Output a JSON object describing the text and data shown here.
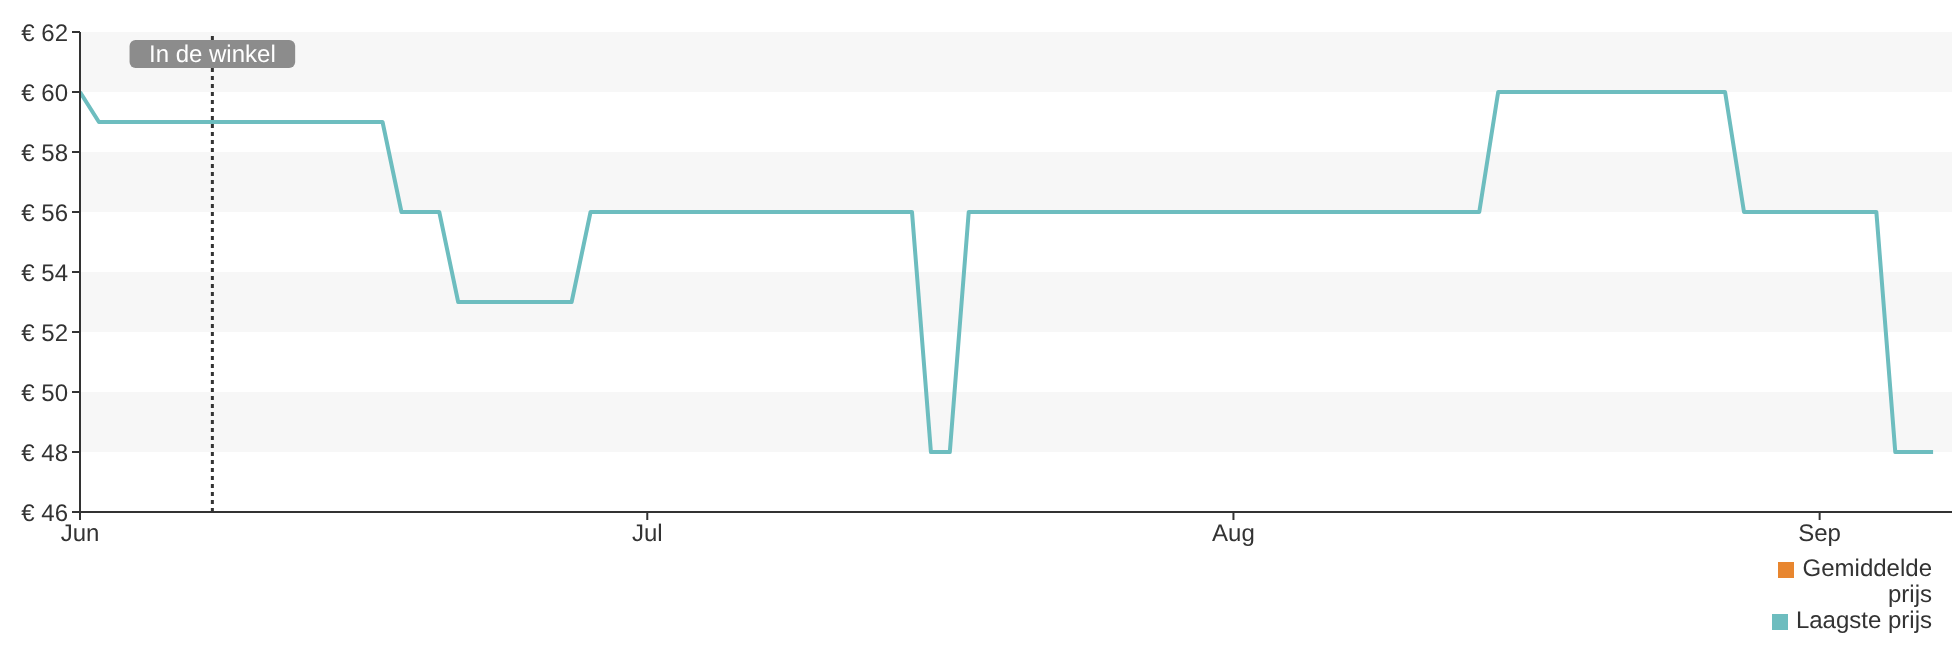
{
  "chart_data": {
    "type": "line",
    "x": [
      "--06-01",
      "--06-02",
      "--06-17",
      "--06-18",
      "--06-20",
      "--06-21",
      "--06-27",
      "--06-28",
      "--07-15",
      "--07-16",
      "--07-17",
      "--07-18",
      "--08-14",
      "--08-15",
      "--08-27",
      "--08-28",
      "--09-04",
      "--09-05",
      "--09-07"
    ],
    "series": [
      {
        "name": "Gemiddelde prijs",
        "color": "#e8862f",
        "values": [
          null,
          null,
          null,
          null,
          null,
          null,
          null,
          null,
          null,
          null,
          null,
          null,
          null,
          null,
          null,
          null,
          null,
          null,
          null
        ]
      },
      {
        "name": "Laagste prijs",
        "color": "#6dbdbf",
        "values": [
          60,
          59,
          59,
          56,
          56,
          53,
          53,
          56,
          56,
          48,
          48,
          56,
          56,
          60,
          60,
          56,
          56,
          48,
          48
        ]
      }
    ],
    "xlim": [
      "--06-01",
      "--09-08"
    ],
    "xticks": [
      {
        "value": "--06-01",
        "label": "Jun"
      },
      {
        "value": "--07-01",
        "label": "Jul"
      },
      {
        "value": "--08-01",
        "label": "Aug"
      },
      {
        "value": "--09-01",
        "label": "Sep"
      }
    ],
    "ylim": [
      46,
      62
    ],
    "yticks": [
      {
        "value": 46,
        "label": "€ 46"
      },
      {
        "value": 48,
        "label": "€ 48"
      },
      {
        "value": 50,
        "label": "€ 50"
      },
      {
        "value": 52,
        "label": "€ 52"
      },
      {
        "value": 54,
        "label": "€ 54"
      },
      {
        "value": 56,
        "label": "€ 56"
      },
      {
        "value": 58,
        "label": "€ 58"
      },
      {
        "value": 60,
        "label": "€ 60"
      },
      {
        "value": 62,
        "label": "€ 62"
      }
    ],
    "ref_lines": [
      {
        "axis": "x",
        "value": "--06-08",
        "label": "In de winkel",
        "color": "#333333",
        "line_style": "dotted"
      }
    ],
    "bands": [
      {
        "axis": "y",
        "from": 60,
        "to": 62,
        "color": "#f7f7f7"
      },
      {
        "axis": "y",
        "from": 56,
        "to": 58,
        "color": "#f7f7f7"
      },
      {
        "axis": "y",
        "from": 52,
        "to": 54,
        "color": "#f7f7f7"
      },
      {
        "axis": "y",
        "from": 48,
        "to": 50,
        "color": "#f7f7f7"
      }
    ],
    "legend": "bottom right",
    "marker": "none",
    "line_style": "solid"
  }
}
